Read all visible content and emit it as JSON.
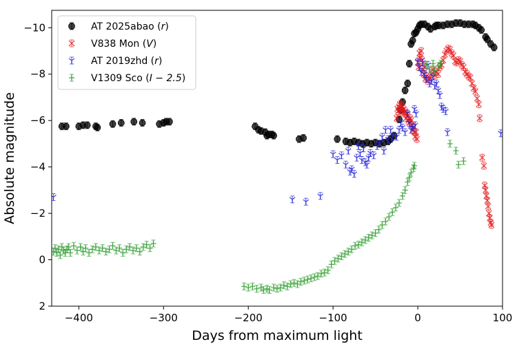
{
  "chart_data": {
    "type": "scatter",
    "title": "",
    "xlabel": "Days from maximum light",
    "ylabel": "Absolute magnitude",
    "xlim": [
      -432,
      100
    ],
    "ylim": [
      2,
      -10.75
    ],
    "x_inverted": false,
    "y_inverted": true,
    "xticks": [
      -400,
      -300,
      -200,
      -100,
      0,
      100
    ],
    "xtick_labels": [
      "−400",
      "−300",
      "−200",
      "−100",
      "0",
      "100"
    ],
    "yticks": [
      2,
      0,
      -2,
      -4,
      -6,
      -8,
      -10
    ],
    "ytick_labels": [
      "2",
      "0",
      "−2",
      "−4",
      "−6",
      "−8",
      "−10"
    ],
    "grid": false,
    "legend_position": "top-left",
    "series": [
      {
        "name": "AT 2025abao",
        "filter": "r",
        "color": "#000000",
        "marker": "circle",
        "points": [
          [
            -420,
            -5.75
          ],
          [
            -415,
            -5.75
          ],
          [
            -400,
            -5.75
          ],
          [
            -395,
            -5.8
          ],
          [
            -390,
            -5.8
          ],
          [
            -380,
            -5.75
          ],
          [
            -378,
            -5.7
          ],
          [
            -360,
            -5.85
          ],
          [
            -350,
            -5.9
          ],
          [
            -335,
            -5.95
          ],
          [
            -325,
            -5.9
          ],
          [
            -305,
            -5.85
          ],
          [
            -300,
            -5.9
          ],
          [
            -297,
            -5.95
          ],
          [
            -293,
            -5.95
          ],
          [
            -192,
            -5.75
          ],
          [
            -188,
            -5.6
          ],
          [
            -185,
            -5.55
          ],
          [
            -180,
            -5.5
          ],
          [
            -178,
            -5.35
          ],
          [
            -176,
            -5.4
          ],
          [
            -172,
            -5.4
          ],
          [
            -170,
            -5.35
          ],
          [
            -140,
            -5.2
          ],
          [
            -135,
            -5.25
          ],
          [
            -95,
            -5.2
          ],
          [
            -85,
            -5.1
          ],
          [
            -80,
            -5.05
          ],
          [
            -75,
            -5.1
          ],
          [
            -70,
            -5.05
          ],
          [
            -65,
            -5.0
          ],
          [
            -60,
            -5.05
          ],
          [
            -55,
            -5.0
          ],
          [
            -50,
            -5.05
          ],
          [
            -45,
            -5.0
          ],
          [
            -40,
            -5.05
          ],
          [
            -35,
            -5.1
          ],
          [
            -32,
            -5.2
          ],
          [
            -28,
            -5.35
          ],
          [
            -22,
            -6.05
          ],
          [
            -20,
            -6.45
          ],
          [
            -18,
            -6.8
          ],
          [
            -15,
            -7.3
          ],
          [
            -12,
            -7.6
          ],
          [
            -10,
            -8.45
          ],
          [
            -8,
            -9.3
          ],
          [
            -6,
            -9.45
          ],
          [
            -4,
            -9.75
          ],
          [
            -2,
            -9.8
          ],
          [
            0,
            -9.95
          ],
          [
            2,
            -10.1
          ],
          [
            4,
            -10.15
          ],
          [
            8,
            -10.15
          ],
          [
            12,
            -10.05
          ],
          [
            15,
            -9.95
          ],
          [
            20,
            -10.05
          ],
          [
            22,
            -10.1
          ],
          [
            25,
            -10.1
          ],
          [
            30,
            -10.1
          ],
          [
            35,
            -10.15
          ],
          [
            40,
            -10.15
          ],
          [
            45,
            -10.2
          ],
          [
            50,
            -10.2
          ],
          [
            55,
            -10.15
          ],
          [
            60,
            -10.15
          ],
          [
            65,
            -10.15
          ],
          [
            68,
            -10.1
          ],
          [
            72,
            -10.0
          ],
          [
            75,
            -9.9
          ],
          [
            80,
            -9.6
          ],
          [
            82,
            -9.5
          ],
          [
            86,
            -9.3
          ],
          [
            90,
            -9.15
          ]
        ]
      },
      {
        "name": "V838 Mon",
        "filter": "V",
        "color": "#e41a1c",
        "marker": "x",
        "points": [
          [
            -25,
            -6.1
          ],
          [
            -24,
            -6.5
          ],
          [
            -23,
            -6.4
          ],
          [
            -22,
            -6.6
          ],
          [
            -21,
            -6.7
          ],
          [
            -20,
            -6.55
          ],
          [
            -19,
            -6.4
          ],
          [
            -18,
            -6.6
          ],
          [
            -17,
            -6.5
          ],
          [
            -16,
            -6.3
          ],
          [
            -15,
            -6.4
          ],
          [
            -14,
            -6.1
          ],
          [
            -13,
            -6.3
          ],
          [
            -12,
            -6.2
          ],
          [
            -11,
            -6.0
          ],
          [
            -10,
            -5.9
          ],
          [
            -9,
            -6.1
          ],
          [
            -8,
            -6.0
          ],
          [
            -7,
            -5.8
          ],
          [
            -6,
            -5.6
          ],
          [
            -5,
            -5.7
          ],
          [
            -4,
            -5.5
          ],
          [
            -3,
            -5.3
          ],
          [
            -2,
            -5.5
          ],
          [
            -1,
            -5.2
          ],
          [
            0,
            -8.5
          ],
          [
            1,
            -8.3
          ],
          [
            2,
            -8.9
          ],
          [
            3,
            -8.7
          ],
          [
            4,
            -9.0
          ],
          [
            5,
            -8.6
          ],
          [
            6,
            -8.2
          ],
          [
            7,
            -8.0
          ],
          [
            8,
            -8.3
          ],
          [
            9,
            -7.8
          ],
          [
            10,
            -7.9
          ],
          [
            12,
            -7.7
          ],
          [
            14,
            -7.85
          ],
          [
            16,
            -8.0
          ],
          [
            18,
            -8.2
          ],
          [
            20,
            -7.95
          ],
          [
            22,
            -8.1
          ],
          [
            24,
            -8.0
          ],
          [
            26,
            -8.3
          ],
          [
            28,
            -8.4
          ],
          [
            30,
            -8.6
          ],
          [
            32,
            -8.85
          ],
          [
            34,
            -9.0
          ],
          [
            36,
            -9.1
          ],
          [
            38,
            -9.05
          ],
          [
            40,
            -8.9
          ],
          [
            42,
            -8.8
          ],
          [
            44,
            -8.55
          ],
          [
            46,
            -8.5
          ],
          [
            48,
            -8.6
          ],
          [
            50,
            -8.55
          ],
          [
            52,
            -8.4
          ],
          [
            54,
            -8.3
          ],
          [
            56,
            -8.1
          ],
          [
            58,
            -8.0
          ],
          [
            60,
            -7.9
          ],
          [
            62,
            -7.85
          ],
          [
            64,
            -7.6
          ],
          [
            66,
            -7.4
          ],
          [
            68,
            -7.25
          ],
          [
            70,
            -6.95
          ],
          [
            72,
            -6.7
          ],
          [
            73,
            -6.1
          ],
          [
            76,
            -4.4
          ],
          [
            78,
            -4.05
          ],
          [
            79,
            -3.2
          ],
          [
            80,
            -3.0
          ],
          [
            81,
            -2.75
          ],
          [
            82,
            -2.55
          ],
          [
            83,
            -2.3
          ],
          [
            84,
            -2.0
          ],
          [
            85,
            -1.8
          ],
          [
            86,
            -1.6
          ],
          [
            87,
            -1.5
          ]
        ]
      },
      {
        "name": "AT 2019zhd",
        "filter": "r",
        "color": "#1f1fd6",
        "marker": "tri_down",
        "points": [
          [
            -430,
            -2.7
          ],
          [
            -148,
            -2.6
          ],
          [
            -132,
            -2.5
          ],
          [
            -115,
            -2.75
          ],
          [
            -100,
            -4.55
          ],
          [
            -95,
            -4.3
          ],
          [
            -90,
            -4.5
          ],
          [
            -85,
            -4.1
          ],
          [
            -82,
            -4.7
          ],
          [
            -80,
            -3.8
          ],
          [
            -78,
            -3.9
          ],
          [
            -75,
            -3.7
          ],
          [
            -72,
            -4.4
          ],
          [
            -70,
            -4.9
          ],
          [
            -68,
            -4.6
          ],
          [
            -66,
            -4.3
          ],
          [
            -64,
            -4.8
          ],
          [
            -62,
            -4.2
          ],
          [
            -60,
            -4.1
          ],
          [
            -58,
            -4.4
          ],
          [
            -56,
            -4.6
          ],
          [
            -52,
            -4.5
          ],
          [
            -48,
            -4.9
          ],
          [
            -45,
            -5.0
          ],
          [
            -42,
            -5.3
          ],
          [
            -40,
            -4.7
          ],
          [
            -38,
            -5.6
          ],
          [
            -35,
            -5.2
          ],
          [
            -32,
            -5.6
          ],
          [
            -30,
            -5.3
          ],
          [
            -25,
            -5.3
          ],
          [
            -22,
            -5.6
          ],
          [
            -20,
            -5.9
          ],
          [
            -18,
            -5.7
          ],
          [
            -15,
            -5.5
          ],
          [
            -12,
            -6.3
          ],
          [
            -10,
            -5.9
          ],
          [
            -8,
            -5.6
          ],
          [
            -6,
            -5.7
          ],
          [
            -4,
            -6.5
          ],
          [
            -3,
            -5.8
          ],
          [
            -2,
            -6.3
          ],
          [
            0,
            -8.55
          ],
          [
            2,
            -8.3
          ],
          [
            4,
            -8.1
          ],
          [
            6,
            -8.5
          ],
          [
            8,
            -8.0
          ],
          [
            10,
            -7.8
          ],
          [
            12,
            -8.4
          ],
          [
            14,
            -7.6
          ],
          [
            16,
            -7.7
          ],
          [
            18,
            -7.9
          ],
          [
            20,
            -7.5
          ],
          [
            22,
            -7.6
          ],
          [
            24,
            -7.3
          ],
          [
            26,
            -7.1
          ],
          [
            28,
            -6.6
          ],
          [
            30,
            -6.5
          ],
          [
            33,
            -6.4
          ],
          [
            35,
            -5.5
          ],
          [
            98,
            -5.45
          ]
        ]
      },
      {
        "name": "V1309 Sco",
        "filter": "I − 2.5",
        "color": "#2a9a2a",
        "marker": "plus",
        "points": [
          [
            -430,
            -0.35
          ],
          [
            -428,
            -0.5
          ],
          [
            -426,
            -0.3
          ],
          [
            -424,
            -0.45
          ],
          [
            -422,
            -0.2
          ],
          [
            -420,
            -0.55
          ],
          [
            -418,
            -0.4
          ],
          [
            -416,
            -0.3
          ],
          [
            -414,
            -0.45
          ],
          [
            -412,
            -0.55
          ],
          [
            -410,
            -0.3
          ],
          [
            -406,
            -0.6
          ],
          [
            -402,
            -0.4
          ],
          [
            -398,
            -0.55
          ],
          [
            -395,
            -0.35
          ],
          [
            -392,
            -0.5
          ],
          [
            -388,
            -0.3
          ],
          [
            -384,
            -0.45
          ],
          [
            -380,
            -0.55
          ],
          [
            -376,
            -0.4
          ],
          [
            -372,
            -0.5
          ],
          [
            -368,
            -0.35
          ],
          [
            -364,
            -0.45
          ],
          [
            -360,
            -0.6
          ],
          [
            -356,
            -0.4
          ],
          [
            -352,
            -0.5
          ],
          [
            -348,
            -0.3
          ],
          [
            -344,
            -0.45
          ],
          [
            -340,
            -0.55
          ],
          [
            -336,
            -0.4
          ],
          [
            -332,
            -0.5
          ],
          [
            -328,
            -0.35
          ],
          [
            -324,
            -0.55
          ],
          [
            -320,
            -0.65
          ],
          [
            -316,
            -0.5
          ],
          [
            -312,
            -0.7
          ],
          [
            -205,
            1.15
          ],
          [
            -200,
            1.2
          ],
          [
            -195,
            1.15
          ],
          [
            -190,
            1.25
          ],
          [
            -185,
            1.2
          ],
          [
            -182,
            1.3
          ],
          [
            -178,
            1.25
          ],
          [
            -175,
            1.3
          ],
          [
            -170,
            1.2
          ],
          [
            -166,
            1.25
          ],
          [
            -162,
            1.2
          ],
          [
            -158,
            1.1
          ],
          [
            -154,
            1.15
          ],
          [
            -150,
            1.05
          ],
          [
            -146,
            1.0
          ],
          [
            -142,
            1.05
          ],
          [
            -138,
            0.95
          ],
          [
            -134,
            0.9
          ],
          [
            -130,
            0.85
          ],
          [
            -126,
            0.8
          ],
          [
            -122,
            0.75
          ],
          [
            -118,
            0.7
          ],
          [
            -114,
            0.6
          ],
          [
            -110,
            0.55
          ],
          [
            -106,
            0.45
          ],
          [
            -102,
            0.2
          ],
          [
            -98,
            0.05
          ],
          [
            -94,
            -0.05
          ],
          [
            -90,
            -0.15
          ],
          [
            -86,
            -0.25
          ],
          [
            -82,
            -0.35
          ],
          [
            -78,
            -0.45
          ],
          [
            -74,
            -0.6
          ],
          [
            -70,
            -0.65
          ],
          [
            -66,
            -0.75
          ],
          [
            -62,
            -0.85
          ],
          [
            -58,
            -0.95
          ],
          [
            -54,
            -1.05
          ],
          [
            -50,
            -1.15
          ],
          [
            -46,
            -1.3
          ],
          [
            -42,
            -1.5
          ],
          [
            -38,
            -1.65
          ],
          [
            -34,
            -1.85
          ],
          [
            -30,
            -2.05
          ],
          [
            -26,
            -2.25
          ],
          [
            -22,
            -2.45
          ],
          [
            -18,
            -2.75
          ],
          [
            -15,
            -3.0
          ],
          [
            -12,
            -3.35
          ],
          [
            -10,
            -3.55
          ],
          [
            -8,
            -3.75
          ],
          [
            -5,
            -3.95
          ],
          [
            -4,
            -4.05
          ],
          [
            10,
            -8.4
          ],
          [
            14,
            -8.2
          ],
          [
            18,
            -8.45
          ],
          [
            20,
            -8.15
          ],
          [
            24,
            -8.35
          ],
          [
            27,
            -8.45
          ],
          [
            38,
            -5.0
          ],
          [
            45,
            -4.7
          ],
          [
            48,
            -4.1
          ],
          [
            54,
            -4.25
          ]
        ]
      }
    ]
  }
}
